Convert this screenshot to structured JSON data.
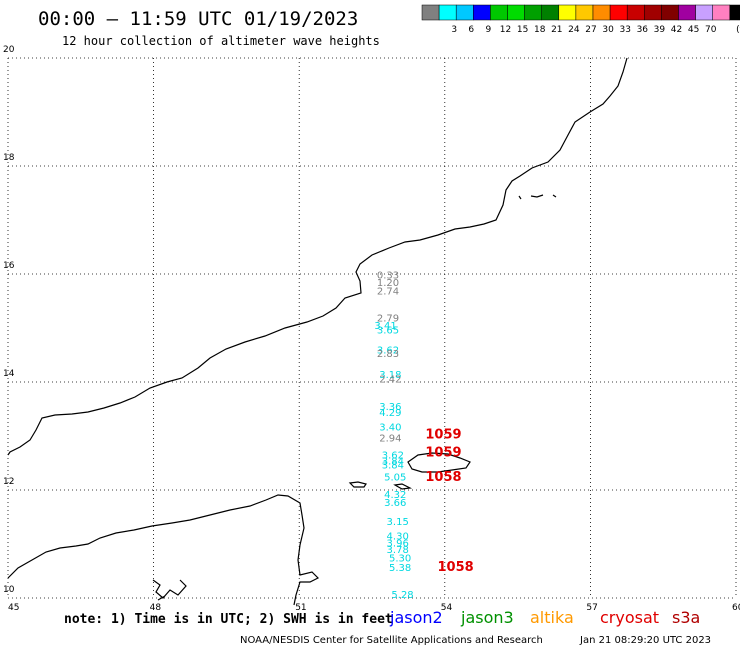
{
  "header": {
    "title": "00:00 – 11:59 UTC 01/19/2023",
    "subtitle": "12 hour collection of altimeter wave heights"
  },
  "colorbar": {
    "unit": "(ft)",
    "entries": [
      {
        "label": "",
        "color": "#808080"
      },
      {
        "label": "3",
        "color": "#00ffff"
      },
      {
        "label": "6",
        "color": "#00c8ff"
      },
      {
        "label": "9",
        "color": "#0000ff"
      },
      {
        "label": "12",
        "color": "#00c800"
      },
      {
        "label": "15",
        "color": "#00dc00"
      },
      {
        "label": "18",
        "color": "#00a000"
      },
      {
        "label": "21",
        "color": "#008000"
      },
      {
        "label": "24",
        "color": "#ffff00"
      },
      {
        "label": "27",
        "color": "#ffc800"
      },
      {
        "label": "30",
        "color": "#ff8c00"
      },
      {
        "label": "33",
        "color": "#ff0000"
      },
      {
        "label": "36",
        "color": "#c80000"
      },
      {
        "label": "39",
        "color": "#a00000"
      },
      {
        "label": "42",
        "color": "#800000"
      },
      {
        "label": "45",
        "color": "#a000a0"
      },
      {
        "label": "70",
        "color": "#c8a0ff"
      },
      {
        "label": "",
        "color": "#ff80c0"
      },
      {
        "label": "",
        "color": "#000000"
      }
    ]
  },
  "axes": {
    "lon_ticks": [
      "45",
      "48",
      "51",
      "54",
      "57",
      "60"
    ],
    "lat_ticks": [
      "10",
      "12",
      "14",
      "16",
      "18",
      "20"
    ]
  },
  "observations": {
    "gray_color": "#808080",
    "cyan_color": "#00d8e0",
    "red_color": "#e00000",
    "points": [
      {
        "v": "0.33",
        "lat": 15.92,
        "lon": 52.6,
        "c": "gray"
      },
      {
        "v": "1.20",
        "lat": 15.78,
        "lon": 52.6,
        "c": "gray"
      },
      {
        "v": "2.74",
        "lat": 15.62,
        "lon": 52.6,
        "c": "gray"
      },
      {
        "v": "2.79",
        "lat": 15.12,
        "lon": 52.6,
        "c": "gray"
      },
      {
        "v": "3.41",
        "lat": 14.98,
        "lon": 52.55,
        "c": "cyan"
      },
      {
        "v": "3.65",
        "lat": 14.9,
        "lon": 52.6,
        "c": "cyan"
      },
      {
        "v": "3.62",
        "lat": 14.53,
        "lon": 52.6,
        "c": "cyan"
      },
      {
        "v": "2.83",
        "lat": 14.46,
        "lon": 52.6,
        "c": "gray"
      },
      {
        "v": "3.18",
        "lat": 14.07,
        "lon": 52.65,
        "c": "cyan"
      },
      {
        "v": "2.42",
        "lat": 13.99,
        "lon": 52.65,
        "c": "gray"
      },
      {
        "v": "3.36",
        "lat": 13.48,
        "lon": 52.65,
        "c": "cyan"
      },
      {
        "v": "4.29",
        "lat": 13.37,
        "lon": 52.65,
        "c": "cyan"
      },
      {
        "v": "3.40",
        "lat": 13.1,
        "lon": 52.65,
        "c": "cyan"
      },
      {
        "v": "2.94",
        "lat": 12.9,
        "lon": 52.65,
        "c": "gray"
      },
      {
        "v": "3.62",
        "lat": 12.58,
        "lon": 52.7,
        "c": "cyan"
      },
      {
        "v": "3.84",
        "lat": 12.47,
        "lon": 52.7,
        "c": "cyan"
      },
      {
        "v": "3.84",
        "lat": 12.4,
        "lon": 52.7,
        "c": "cyan"
      },
      {
        "v": "5.05",
        "lat": 12.18,
        "lon": 52.75,
        "c": "cyan"
      },
      {
        "v": "4.32",
        "lat": 11.85,
        "lon": 52.75,
        "c": "cyan"
      },
      {
        "v": "3.66",
        "lat": 11.7,
        "lon": 52.75,
        "c": "cyan"
      },
      {
        "v": "3.15",
        "lat": 11.35,
        "lon": 52.8,
        "c": "cyan"
      },
      {
        "v": "4.30",
        "lat": 11.08,
        "lon": 52.8,
        "c": "cyan"
      },
      {
        "v": "3.96",
        "lat": 10.95,
        "lon": 52.8,
        "c": "cyan"
      },
      {
        "v": "3.78",
        "lat": 10.83,
        "lon": 52.8,
        "c": "cyan"
      },
      {
        "v": "5.30",
        "lat": 10.68,
        "lon": 52.85,
        "c": "cyan"
      },
      {
        "v": "5.38",
        "lat": 10.5,
        "lon": 52.85,
        "c": "cyan"
      },
      {
        "v": "5.28",
        "lat": 10.0,
        "lon": 52.9,
        "c": "cyan"
      },
      {
        "v": "1059",
        "lat": 12.95,
        "lon": 53.6,
        "c": "red"
      },
      {
        "v": "1059",
        "lat": 12.62,
        "lon": 53.6,
        "c": "red"
      },
      {
        "v": "1058",
        "lat": 12.17,
        "lon": 53.6,
        "c": "red"
      },
      {
        "v": "1058",
        "lat": 10.5,
        "lon": 53.85,
        "c": "red"
      }
    ]
  },
  "footer": {
    "note": "note: 1) Time is in UTC; 2) SWH is in feet",
    "satellites": [
      {
        "label": "jason2",
        "color": "#0000ff"
      },
      {
        "label": "jason3",
        "color": "#009000"
      },
      {
        "label": "altika",
        "color": "#ff9900"
      },
      {
        "label": "cryosat",
        "color": "#e00000"
      },
      {
        "label": "s3a",
        "color": "#b00000"
      }
    ],
    "credit": "NOAA/NESDIS Center for Satellite Applications and Research",
    "generated": "Jan 21 08:29:20 UTC 2023"
  }
}
